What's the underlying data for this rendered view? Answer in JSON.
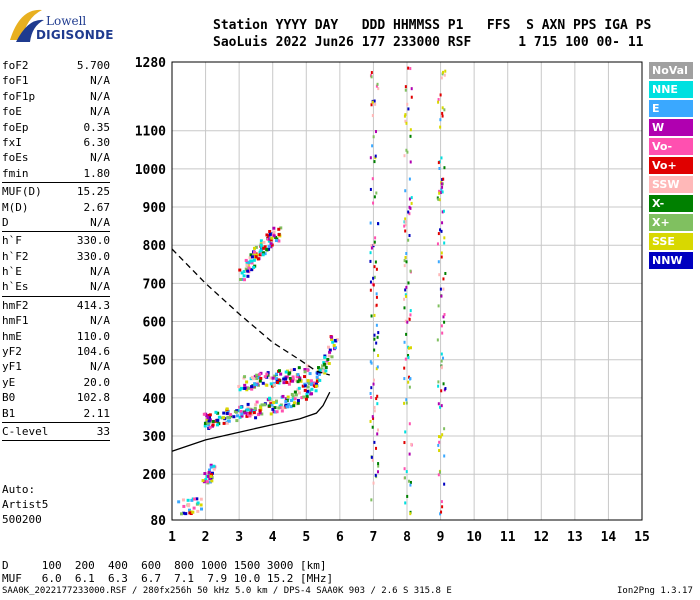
{
  "logo": {
    "line1": "Lowell",
    "line2": "DIGISONDE"
  },
  "header": {
    "line1": "Station YYYY DAY   DDD HHMMSS P1   FFS  S AXN PPS IGA PS",
    "line2": "SaoLuis 2022 Jun26 177 233000 RSF      1 715 100 00- 11"
  },
  "params": {
    "group1": [
      {
        "k": "foF2",
        "v": "5.700"
      },
      {
        "k": "foF1",
        "v": "N/A"
      },
      {
        "k": "foF1p",
        "v": "N/A"
      },
      {
        "k": "foE",
        "v": "N/A"
      },
      {
        "k": "foEp",
        "v": "0.35"
      },
      {
        "k": "fxI",
        "v": "6.30"
      },
      {
        "k": "foEs",
        "v": "N/A"
      },
      {
        "k": "fmin",
        "v": "1.80"
      }
    ],
    "group2": [
      {
        "k": "MUF(D)",
        "v": "15.25"
      },
      {
        "k": "M(D)",
        "v": "2.67"
      },
      {
        "k": "D",
        "v": "N/A"
      }
    ],
    "group3": [
      {
        "k": "h`F",
        "v": "330.0"
      },
      {
        "k": "h`F2",
        "v": "330.0"
      },
      {
        "k": "h`E",
        "v": "N/A"
      },
      {
        "k": "h`Es",
        "v": "N/A"
      }
    ],
    "group4": [
      {
        "k": "hmF2",
        "v": "414.3"
      },
      {
        "k": "hmF1",
        "v": "N/A"
      },
      {
        "k": "hmE",
        "v": "110.0"
      },
      {
        "k": "yF2",
        "v": "104.6"
      },
      {
        "k": "yF1",
        "v": "N/A"
      },
      {
        "k": "yE",
        "v": "20.0"
      },
      {
        "k": "B0",
        "v": "102.8"
      },
      {
        "k": "B1",
        "v": "2.11"
      }
    ],
    "group5": [
      {
        "k": "C-level",
        "v": "33"
      }
    ]
  },
  "auto": {
    "line1": "Auto:",
    "line2": "Artist5",
    "line3": "500200"
  },
  "muf_table": {
    "d_row": "D     100  200  400  600  800 1000 1500 3000 [km]",
    "muf_row": "MUF   6.0  6.1  6.3  6.7  7.1  7.9 10.0 15.2 [MHz]"
  },
  "footer": {
    "left": "SAA0K_2022177233000.RSF / 280fx256h 50 kHz 5.0 km / DPS-4 SAA0K 903 / 2.6 S 315.8 E",
    "right": "Ion2Png 1.3.17"
  },
  "legend": [
    {
      "label": "NoVal",
      "color": "#a0a0a0"
    },
    {
      "label": "NNE",
      "color": "#00e0e0"
    },
    {
      "label": "E",
      "color": "#3aa8ff"
    },
    {
      "label": "W",
      "color": "#b000b0"
    },
    {
      "label": "Vo-",
      "color": "#ff50b0"
    },
    {
      "label": "Vo+",
      "color": "#e00000"
    },
    {
      "label": "SSW",
      "color": "#ffb8b8"
    },
    {
      "label": "X-",
      "color": "#008000"
    },
    {
      "label": "X+",
      "color": "#80c060"
    },
    {
      "label": "SSE",
      "color": "#d8d800"
    },
    {
      "label": "NNW",
      "color": "#0000c0"
    }
  ],
  "chart_data": {
    "type": "scatter",
    "xlim": [
      1,
      15
    ],
    "ylim": [
      80,
      1280
    ],
    "x_ticks": [
      1,
      2,
      3,
      4,
      5,
      6,
      7,
      8,
      9,
      10,
      11,
      12,
      13,
      14,
      15
    ],
    "y_ticks": [
      80,
      200,
      300,
      400,
      500,
      600,
      700,
      800,
      900,
      1000,
      1100,
      1280
    ],
    "grid": true,
    "legend_position": "right",
    "trace_bands": [
      {
        "x": [
          1.9,
          2.3,
          2.8,
          3.3,
          3.8,
          4.3,
          4.8,
          5.2,
          5.5,
          5.8
        ],
        "y": [
          340,
          350,
          360,
          370,
          380,
          390,
          410,
          440,
          480,
          560
        ]
      },
      {
        "x": [
          3.0,
          3.5,
          4.0,
          4.5,
          5.0
        ],
        "y": [
          440,
          450,
          455,
          460,
          470
        ]
      },
      {
        "x": [
          3.0,
          3.3,
          3.6,
          3.9,
          4.2
        ],
        "y": [
          720,
          760,
          790,
          820,
          840
        ]
      },
      {
        "x": [
          1.9,
          2.2
        ],
        "y": [
          180,
          215
        ]
      },
      {
        "x": [
          1.2,
          1.9
        ],
        "y": [
          120,
          120
        ]
      }
    ],
    "vertical_traces": [
      {
        "x": 7.0,
        "y": [
          100,
          1280
        ]
      },
      {
        "x": 8.0,
        "y": [
          90,
          1280
        ]
      },
      {
        "x": 9.0,
        "y": [
          90,
          1280
        ]
      }
    ],
    "profile_solid": {
      "x": [
        1.0,
        2.0,
        3.0,
        4.0,
        4.8,
        5.3,
        5.5,
        5.7
      ],
      "y": [
        260,
        290,
        310,
        330,
        345,
        360,
        380,
        415
      ]
    },
    "profile_dashed": {
      "x": [
        1.0,
        2.0,
        3.0,
        4.0,
        4.8,
        5.3,
        5.7
      ],
      "y": [
        790,
        700,
        620,
        545,
        500,
        470,
        460
      ]
    }
  }
}
